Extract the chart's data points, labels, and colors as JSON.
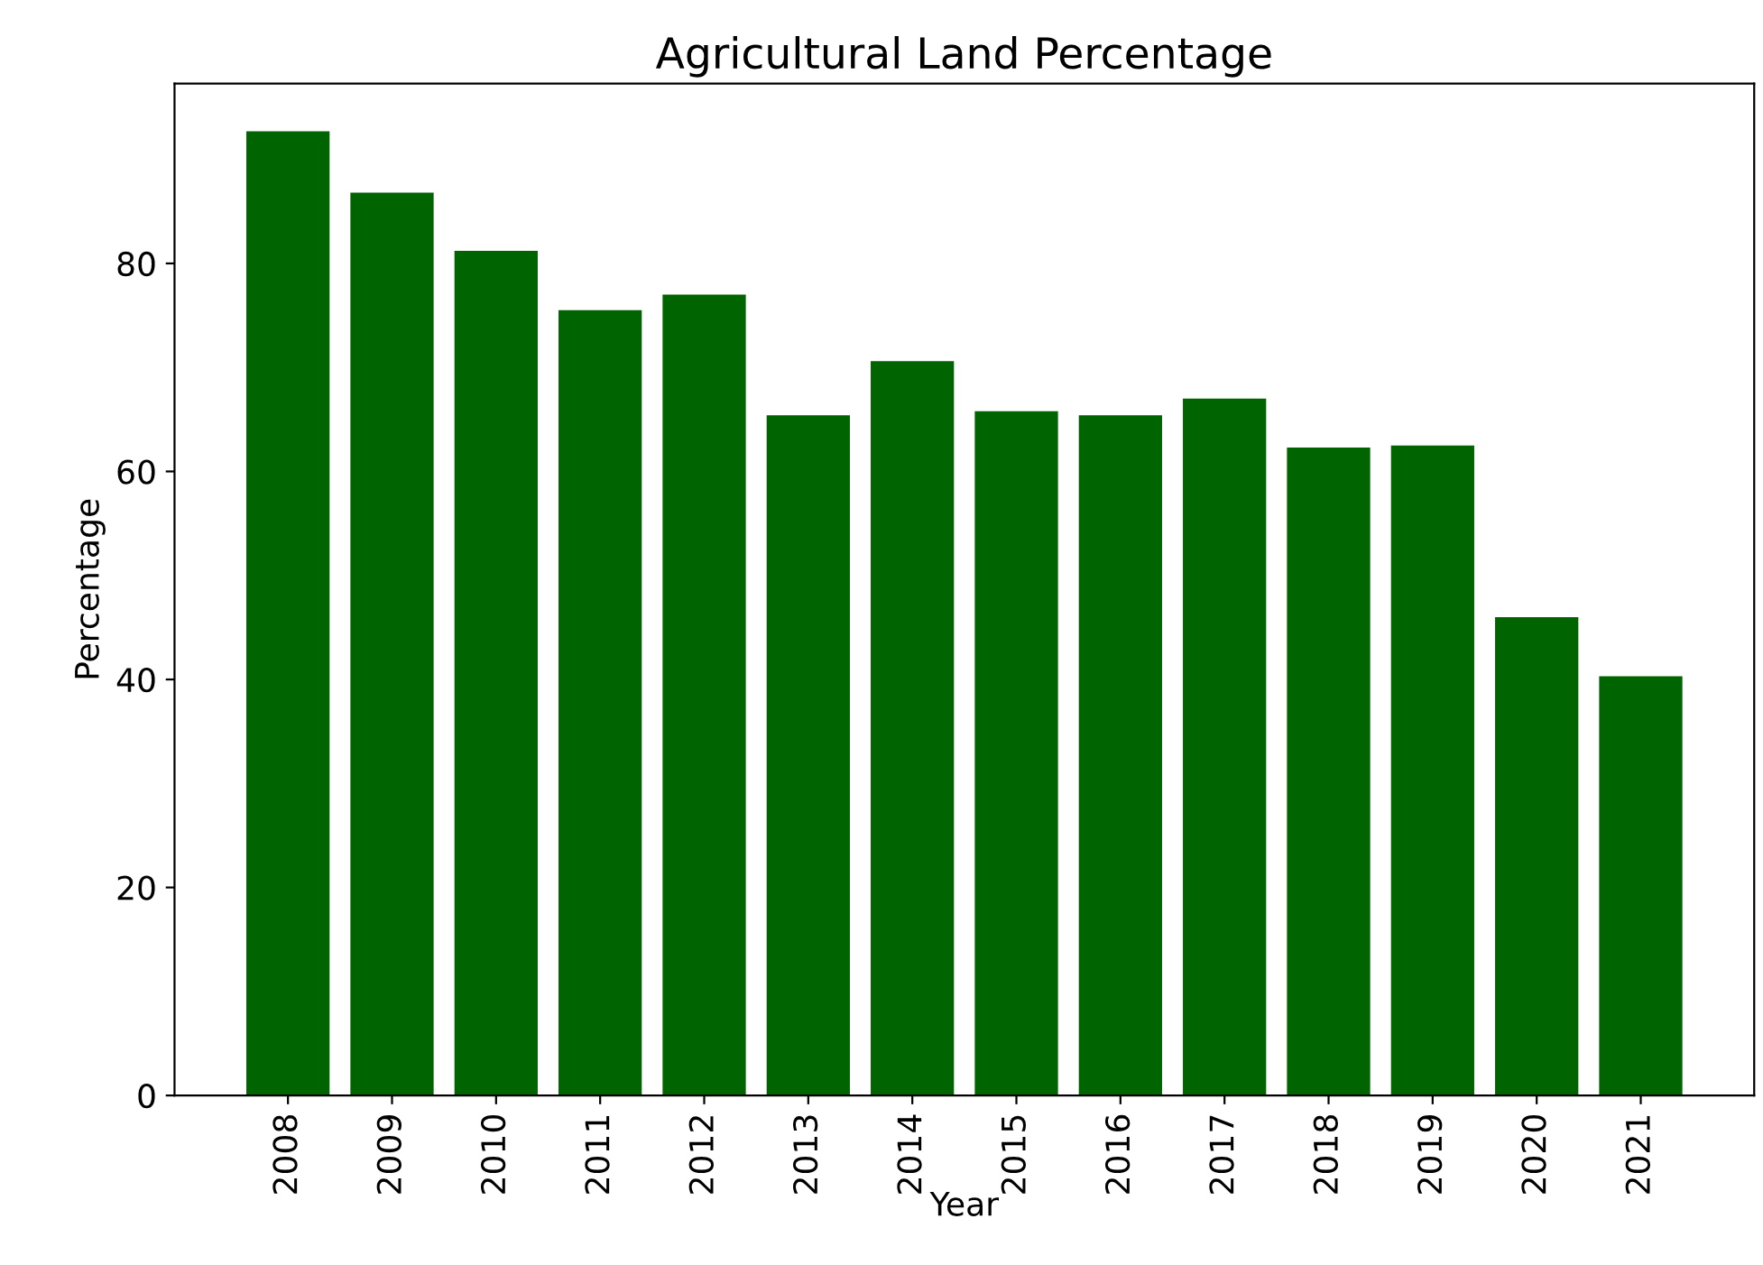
{
  "chart_data": {
    "type": "bar",
    "title": "Agricultural Land Percentage",
    "xlabel": "Year",
    "ylabel": "Percentage",
    "categories": [
      "2008",
      "2009",
      "2010",
      "2011",
      "2012",
      "2013",
      "2014",
      "2015",
      "2016",
      "2017",
      "2018",
      "2019",
      "2020",
      "2021"
    ],
    "values": [
      92.7,
      86.8,
      81.2,
      75.5,
      77.0,
      65.4,
      70.6,
      65.8,
      65.4,
      67.0,
      62.3,
      62.5,
      46.0,
      40.3
    ],
    "color": "#006400",
    "ylim": [
      0,
      97.3
    ],
    "yticks": [
      0,
      20,
      40,
      60,
      80
    ],
    "grid": false,
    "legend": false
  }
}
